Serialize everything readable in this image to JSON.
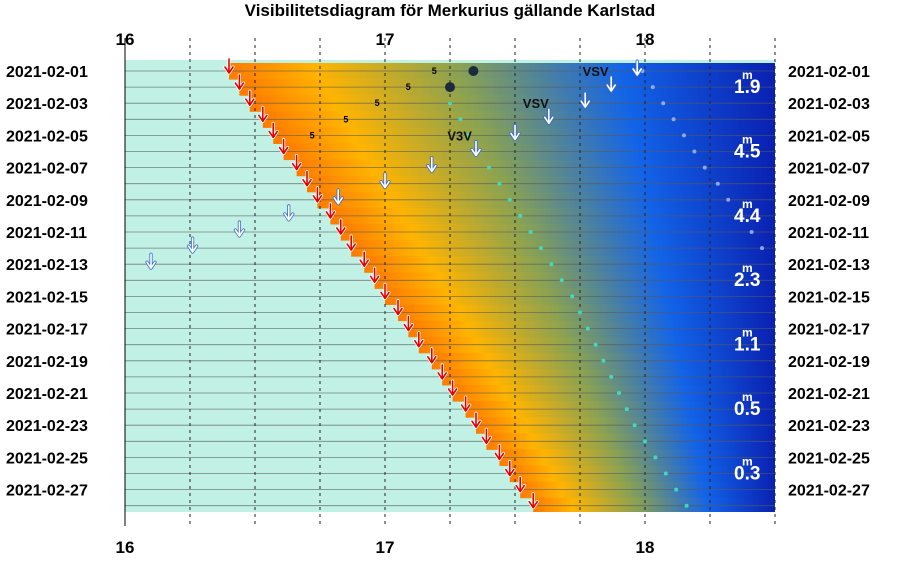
{
  "chart_data": {
    "type": "visibility-diagram",
    "title": "Visibilitetsdiagram för Merkurius gällande Karlstad",
    "x_axis": {
      "range": [
        16,
        18.5
      ],
      "major_ticks": [
        16,
        17,
        18
      ],
      "minor_ticks": [
        16.25,
        16.5,
        16.75,
        17.25,
        17.5,
        17.75,
        18.25,
        18.5
      ]
    },
    "y_axis": {
      "start_date": "2021-02-01",
      "end_date": "2021-02-28",
      "labels": [
        "2021-02-01",
        "2021-02-03",
        "2021-02-05",
        "2021-02-07",
        "2021-02-09",
        "2021-02-11",
        "2021-02-13",
        "2021-02-15",
        "2021-02-17",
        "2021-02-19",
        "2021-02-21",
        "2021-02-23",
        "2021-02-25",
        "2021-02-27"
      ]
    },
    "sunset_arrows": [
      {
        "date": "2021-02-01",
        "time": 16.4
      },
      {
        "date": "2021-02-02",
        "time": 16.44
      },
      {
        "date": "2021-02-03",
        "time": 16.48
      },
      {
        "date": "2021-02-04",
        "time": 16.53
      },
      {
        "date": "2021-02-05",
        "time": 16.57
      },
      {
        "date": "2021-02-06",
        "time": 16.61
      },
      {
        "date": "2021-02-07",
        "time": 16.66
      },
      {
        "date": "2021-02-08",
        "time": 16.7
      },
      {
        "date": "2021-02-09",
        "time": 16.74
      },
      {
        "date": "2021-02-10",
        "time": 16.79
      },
      {
        "date": "2021-02-11",
        "time": 16.83
      },
      {
        "date": "2021-02-12",
        "time": 16.87
      },
      {
        "date": "2021-02-13",
        "time": 16.92
      },
      {
        "date": "2021-02-14",
        "time": 16.96
      },
      {
        "date": "2021-02-15",
        "time": 17.0
      },
      {
        "date": "2021-02-16",
        "time": 17.05
      },
      {
        "date": "2021-02-17",
        "time": 17.09
      },
      {
        "date": "2021-02-18",
        "time": 17.13
      },
      {
        "date": "2021-02-19",
        "time": 17.18
      },
      {
        "date": "2021-02-20",
        "time": 17.22
      },
      {
        "date": "2021-02-21",
        "time": 17.26
      },
      {
        "date": "2021-02-22",
        "time": 17.31
      },
      {
        "date": "2021-02-23",
        "time": 17.35
      },
      {
        "date": "2021-02-24",
        "time": 17.39
      },
      {
        "date": "2021-02-25",
        "time": 17.44
      },
      {
        "date": "2021-02-26",
        "time": 17.48
      },
      {
        "date": "2021-02-27",
        "time": 17.52
      },
      {
        "date": "2021-02-28",
        "time": 17.57
      }
    ],
    "planet_set_arrows": [
      {
        "date": "2021-02-01",
        "time": 17.97
      },
      {
        "date": "2021-02-02",
        "time": 17.87
      },
      {
        "date": "2021-02-03",
        "time": 17.77
      },
      {
        "date": "2021-02-04",
        "time": 17.63
      },
      {
        "date": "2021-02-05",
        "time": 17.5
      },
      {
        "date": "2021-02-06",
        "time": 17.35
      },
      {
        "date": "2021-02-07",
        "time": 17.18
      },
      {
        "date": "2021-02-08",
        "time": 17.0
      },
      {
        "date": "2021-02-09",
        "time": 16.82
      },
      {
        "date": "2021-02-10",
        "time": 16.63
      },
      {
        "date": "2021-02-11",
        "time": 16.44
      },
      {
        "date": "2021-02-12",
        "time": 16.26
      },
      {
        "date": "2021-02-13",
        "time": 16.1
      }
    ],
    "direction_labels": [
      {
        "date": "2021-02-01",
        "time": 17.76,
        "text": "VSV"
      },
      {
        "date": "2021-02-03",
        "time": 17.53,
        "text": "VSV"
      },
      {
        "date": "2021-02-05",
        "time": 17.24,
        "text": "V3V"
      }
    ],
    "altitude_labels": [
      {
        "date": "2021-02-01",
        "time": 17.18,
        "text": "5"
      },
      {
        "date": "2021-02-02",
        "time": 17.08,
        "text": "5"
      },
      {
        "date": "2021-02-03",
        "time": 16.96,
        "text": "5"
      },
      {
        "date": "2021-02-04",
        "time": 16.84,
        "text": "5"
      },
      {
        "date": "2021-02-05",
        "time": 16.71,
        "text": "5"
      }
    ],
    "magnitude_labels": [
      {
        "date": "2021-02-01",
        "value": "1.9"
      },
      {
        "date": "2021-02-05",
        "value": "4.5"
      },
      {
        "date": "2021-02-09",
        "value": "4.4"
      },
      {
        "date": "2021-02-13",
        "value": "2.3"
      },
      {
        "date": "2021-02-17",
        "value": "1.1"
      },
      {
        "date": "2021-02-21",
        "value": "0.5"
      },
      {
        "date": "2021-02-25",
        "value": "0.3"
      }
    ],
    "magnitude_superscript": "m",
    "planet_dots": [
      {
        "date": "2021-02-01",
        "time": 17.34,
        "size": "large"
      },
      {
        "date": "2021-02-02",
        "time": 17.25,
        "size": "large"
      }
    ],
    "dot_trail_1": [
      {
        "day": 3,
        "time": 17.25
      },
      {
        "day": 4,
        "time": 17.29
      },
      {
        "day": 5,
        "time": 17.32
      },
      {
        "day": 6,
        "time": 17.36
      },
      {
        "day": 7,
        "time": 17.4
      },
      {
        "day": 8,
        "time": 17.44
      },
      {
        "day": 9,
        "time": 17.48
      },
      {
        "day": 10,
        "time": 17.52
      },
      {
        "day": 11,
        "time": 17.56
      },
      {
        "day": 12,
        "time": 17.6
      },
      {
        "day": 13,
        "time": 17.64
      },
      {
        "day": 14,
        "time": 17.68
      },
      {
        "day": 15,
        "time": 17.72
      },
      {
        "day": 16,
        "time": 17.75
      },
      {
        "day": 17,
        "time": 17.78
      },
      {
        "day": 18,
        "time": 17.81
      },
      {
        "day": 19,
        "time": 17.84
      },
      {
        "day": 20,
        "time": 17.87
      },
      {
        "day": 21,
        "time": 17.9
      },
      {
        "day": 22,
        "time": 17.93
      },
      {
        "day": 23,
        "time": 17.96
      },
      {
        "day": 24,
        "time": 18.0
      },
      {
        "day": 25,
        "time": 18.04
      },
      {
        "day": 26,
        "time": 18.08
      },
      {
        "day": 27,
        "time": 18.12
      },
      {
        "day": 28,
        "time": 18.16
      }
    ],
    "dot_trail_2": [
      {
        "day": 1,
        "time": 17.99
      },
      {
        "day": 2,
        "time": 18.03
      },
      {
        "day": 3,
        "time": 18.07
      },
      {
        "day": 4,
        "time": 18.11
      },
      {
        "day": 5,
        "time": 18.15
      },
      {
        "day": 6,
        "time": 18.19
      },
      {
        "day": 7,
        "time": 18.23
      },
      {
        "day": 8,
        "time": 18.28
      },
      {
        "day": 9,
        "time": 18.32
      },
      {
        "day": 10,
        "time": 18.37
      },
      {
        "day": 11,
        "time": 18.41
      },
      {
        "day": 12,
        "time": 18.45
      }
    ],
    "colors": {
      "day_background": "#c1f1e4",
      "twilight_orange": "#ff7a00",
      "twilight_yellow": "#ffb400",
      "dusk_olive": "#8aa252",
      "dusk_blue": "#1263e8",
      "night_blue": "#0a1fb0",
      "sunset_arrow": "#e60000",
      "planet_arrow": "#ffffff",
      "planet_dot": "#1c2a3c",
      "trail_dot": "#40e0c8"
    },
    "grid": true
  }
}
